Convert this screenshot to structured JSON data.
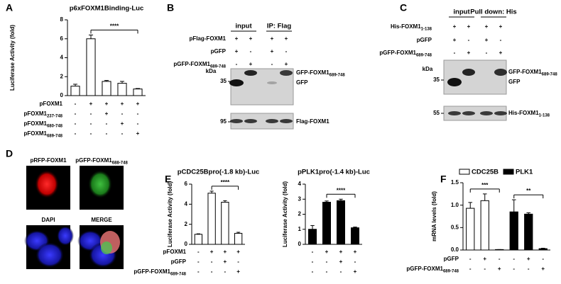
{
  "chart_data": [
    {
      "type": "bar",
      "panel": "A",
      "title": "p6xFOXM1Binding-Luc",
      "ylabel": "Luciferase Activity (fold)",
      "ylim": [
        0,
        8
      ],
      "yticks": [
        0,
        2,
        4,
        6,
        8
      ],
      "color": "#ffffff",
      "values": [
        1,
        6,
        1.5,
        1.3,
        0.7
      ],
      "errors": [
        0.2,
        0.4,
        0.1,
        0.2,
        0.05
      ],
      "significance": [
        {
          "label": "****",
          "from": 1,
          "to": 4
        }
      ],
      "conditions": [
        {
          "label": "pFOXM1",
          "marks": [
            "-",
            "+",
            "+",
            "+",
            "+"
          ]
        },
        {
          "label": "pFOXM1",
          "sub": "237-748",
          "marks": [
            "-",
            "-",
            "+",
            "-",
            "-"
          ]
        },
        {
          "label": "pFOXM1",
          "sub": "680-748",
          "marks": [
            "-",
            "-",
            "-",
            "+",
            "-"
          ]
        },
        {
          "label": "pFOXM1",
          "sub": "689-748",
          "marks": [
            "-",
            "-",
            "-",
            "-",
            "+"
          ]
        }
      ]
    },
    {
      "type": "bar",
      "panel": "E",
      "title": "pCDC25Bpro(-1.8 kb)-Luc",
      "ylabel": "Luciferase Activity (fold)",
      "ylim": [
        0,
        6
      ],
      "yticks": [
        0,
        2,
        4,
        6
      ],
      "color": "#ffffff",
      "values": [
        1,
        5.1,
        4.2,
        1.1
      ],
      "errors": [
        0.05,
        0.2,
        0.15,
        0.1
      ],
      "significance": [
        {
          "label": "****",
          "from": 1,
          "to": 3
        }
      ],
      "conditions": [
        {
          "label": "pFOXM1",
          "marks": [
            "-",
            "+",
            "+",
            "+"
          ]
        },
        {
          "label": "pGFP",
          "marks": [
            "-",
            "-",
            "+",
            "-"
          ]
        },
        {
          "label": "pGFP-FOXM1",
          "sub": "689-748",
          "marks": [
            "-",
            "-",
            "-",
            "+"
          ]
        }
      ]
    },
    {
      "type": "bar",
      "title": "pPLK1pro(-1.4 kb)-Luc",
      "ylabel": "Luciferase Activity (fold)",
      "ylim": [
        0,
        4
      ],
      "yticks": [
        0,
        1,
        2,
        3,
        4
      ],
      "color": "#000000",
      "values": [
        1,
        2.8,
        2.9,
        1.1
      ],
      "errors": [
        0.25,
        0.08,
        0.1,
        0.05
      ],
      "significance": [
        {
          "label": "****",
          "from": 1,
          "to": 3
        }
      ],
      "conditions": [
        {
          "marks": [
            "-",
            "+",
            "+",
            "+"
          ]
        },
        {
          "marks": [
            "-",
            "-",
            "+",
            "-"
          ]
        },
        {
          "marks": [
            "-",
            "-",
            "-",
            "+"
          ]
        }
      ]
    },
    {
      "type": "bar",
      "panel": "F",
      "ylabel": "mRNA levels (fold)",
      "ylim": [
        0,
        1.5
      ],
      "yticks": [
        {
          "value": 0,
          "label": "0.0"
        },
        0.5,
        {
          "value": 1,
          "label": "1.0"
        },
        {
          "value": 1.5,
          "label": "1.5"
        }
      ],
      "series": [
        {
          "name": "CDC25B",
          "color": "#ffffff",
          "values": [
            0.93,
            1.1,
            0.01
          ],
          "errors": [
            0.13,
            0.15,
            0
          ]
        },
        {
          "name": "PLK1",
          "color": "#000000",
          "values": [
            0.85,
            0.8,
            0.03
          ],
          "errors": [
            0.27,
            0.03,
            0.01
          ]
        }
      ],
      "significance": [
        {
          "label": "***",
          "from": 0,
          "to": 2
        },
        {
          "label": "**",
          "from": 3,
          "to": 5
        }
      ],
      "conditions": [
        {
          "label": "pGFP",
          "marks": [
            "-",
            "+",
            "-",
            "-",
            "+",
            "-"
          ]
        },
        {
          "label": "pGFP-FOXM1",
          "sub": "689-748",
          "marks": [
            "-",
            "-",
            "+",
            "-",
            "-",
            "+"
          ]
        }
      ]
    }
  ],
  "blots": [
    {
      "panel": "B",
      "headers": [
        "input",
        "IP: Flag"
      ],
      "rows": [
        {
          "label": "pFlag-FOXM1",
          "marks": [
            "+",
            "+",
            "+",
            "+"
          ]
        },
        {
          "label": "pGFP",
          "marks": [
            "+",
            "-",
            "+",
            "-"
          ]
        },
        {
          "label": "pGFP-FOXM1",
          "sub": "689-748",
          "marks": [
            "-",
            "+",
            "-",
            "+"
          ]
        }
      ],
      "kda": "kDa",
      "markers": [
        35,
        95
      ],
      "bands": [
        {
          "label": "GFP-FOXM1",
          "sub": "689-748"
        },
        {
          "label": "GFP"
        },
        {
          "label": "Flag-FOXM1"
        }
      ]
    },
    {
      "panel": "C",
      "headers": [
        "input",
        "Pull down: His"
      ],
      "rows": [
        {
          "label": "His-FOXM1",
          "sub": "1-138",
          "marks": [
            "+",
            "+",
            "+",
            "+"
          ]
        },
        {
          "label": "pGFP",
          "marks": [
            "+",
            "-",
            "+",
            "-"
          ]
        },
        {
          "label": "pGFP-FOXM1",
          "sub": "689-748",
          "marks": [
            "-",
            "+",
            "-",
            "+"
          ]
        }
      ],
      "kda": "kDa",
      "markers": [
        35,
        55
      ],
      "bands": [
        {
          "label": "GFP-FOXM1",
          "sub": "689-748"
        },
        {
          "label": "GFP"
        },
        {
          "label": "His-FOXM1",
          "sub": "1-138"
        }
      ]
    }
  ],
  "images": {
    "panel": "D",
    "tiles": [
      {
        "label": "pRFP-FOXM1"
      },
      {
        "label": "pGFP-FOXM1",
        "sub": "688-748"
      },
      {
        "label": "DAPI"
      },
      {
        "label": "MERGE"
      }
    ]
  }
}
